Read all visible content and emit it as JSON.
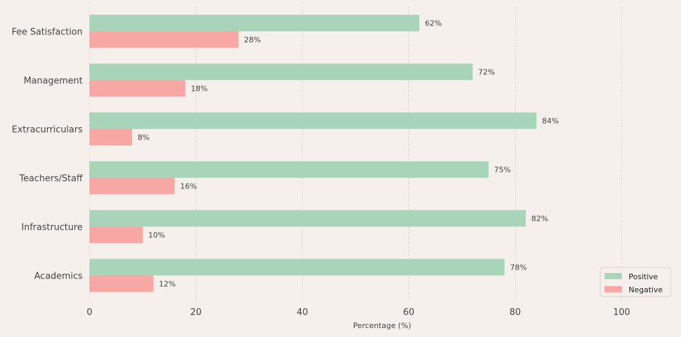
{
  "chart_data": {
    "type": "bar",
    "orientation": "horizontal",
    "categories": [
      "Fee Satisfaction",
      "Management",
      "Extracurriculars",
      "Teachers/Staff",
      "Infrastructure",
      "Academics"
    ],
    "series": [
      {
        "name": "Positive",
        "values": [
          62,
          72,
          84,
          75,
          82,
          78
        ],
        "color": "#a8d5ba"
      },
      {
        "name": "Negative",
        "values": [
          28,
          18,
          8,
          16,
          10,
          12
        ],
        "color": "#f7a8a4"
      }
    ],
    "value_suffix": "%",
    "xlabel": "Percentage (%)",
    "ylabel": "",
    "xlim": [
      0,
      110
    ],
    "xticks": [
      0,
      20,
      40,
      60,
      80,
      100
    ],
    "grid": "x-dashed",
    "legend_position": "bottom-right"
  },
  "colors": {
    "background": "#f5f0eb",
    "grid": "#cfc8c2",
    "text": "#444444"
  }
}
